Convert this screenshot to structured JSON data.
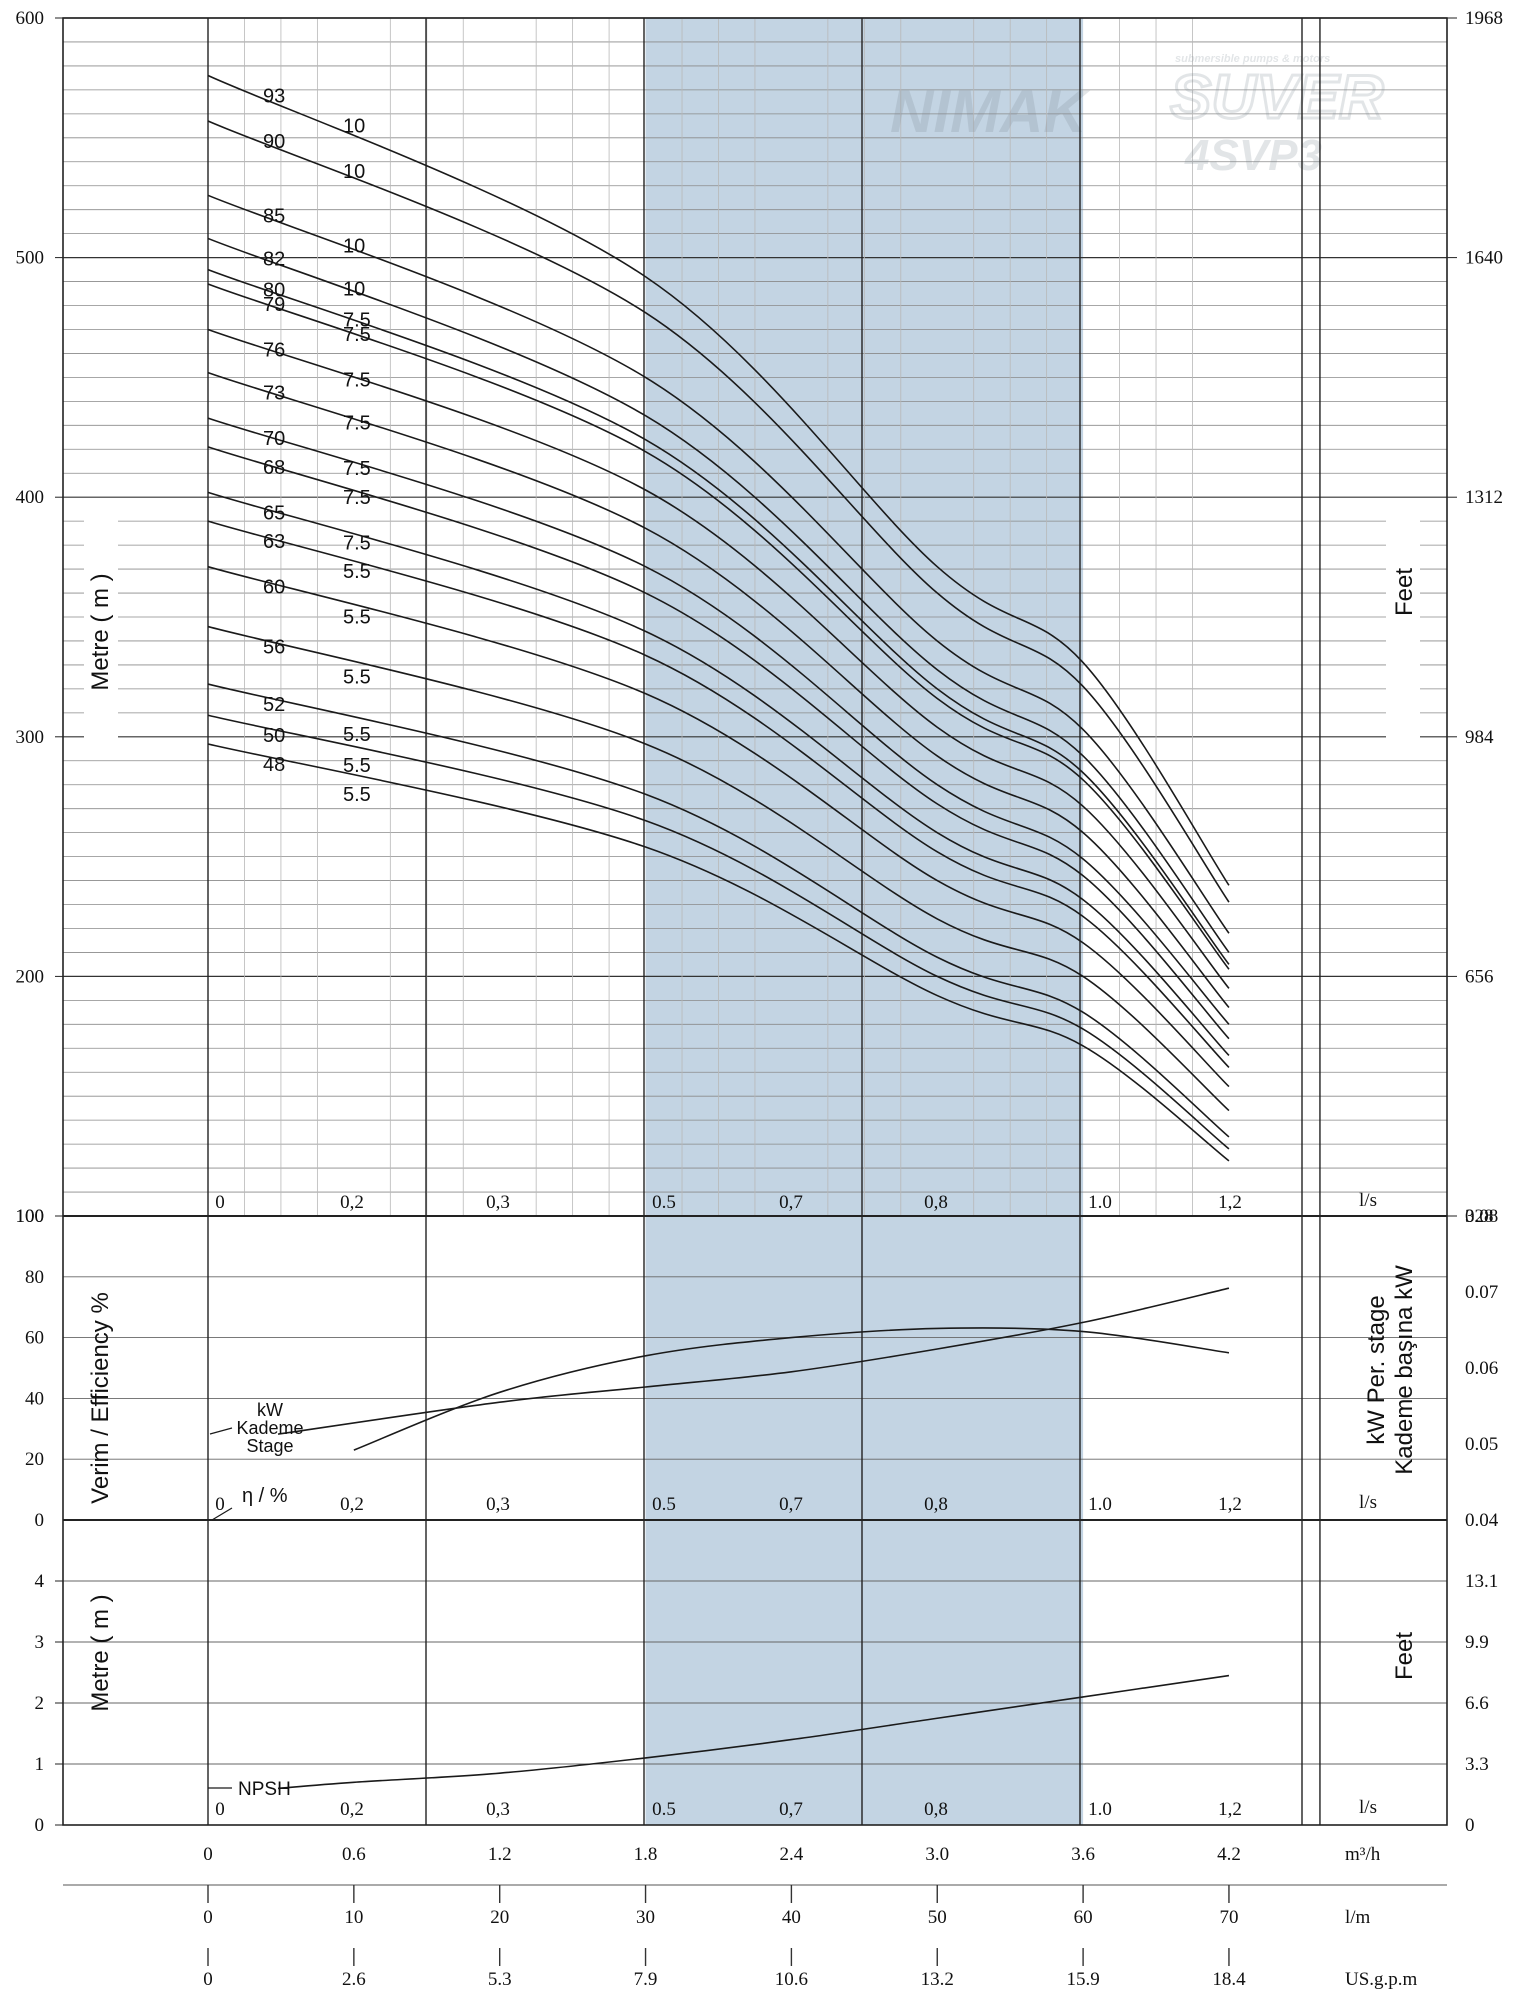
{
  "chart_data": [
    {
      "panel": "head",
      "type": "line",
      "ylabel_left": "Metre ( m )",
      "ylabel_right": "Feet",
      "y_ticks_left": [
        "600",
        "500",
        "400",
        "300",
        "200",
        "100"
      ],
      "y_ticks_right": [
        "1968",
        "1640",
        "1312",
        "984",
        "656",
        "328"
      ],
      "ylim": [
        100,
        600
      ],
      "x_ticks": [
        "0",
        "0,2",
        "0,3",
        "0.5",
        "0,7",
        "0,8",
        "1.0",
        "1,2"
      ],
      "x_unit": "l/s",
      "series": [
        {
          "stage": "93",
          "kw": "10",
          "q": [
            0,
            30,
            50,
            60,
            70
          ],
          "h": [
            576,
            492,
            371,
            331,
            238
          ]
        },
        {
          "stage": "90",
          "kw": "10",
          "q": [
            0,
            30,
            50,
            60,
            70
          ],
          "h": [
            557,
            477,
            360,
            321,
            231
          ]
        },
        {
          "stage": "85",
          "kw": "10",
          "q": [
            0,
            30,
            50,
            60,
            70
          ],
          "h": [
            526,
            450,
            340,
            303,
            218
          ]
        },
        {
          "stage": "82",
          "kw": "10",
          "q": [
            0,
            30,
            50,
            60,
            70
          ],
          "h": [
            508,
            434,
            328,
            292,
            210
          ]
        },
        {
          "stage": "80",
          "kw": "7.5",
          "q": [
            0,
            30,
            50,
            60,
            70
          ],
          "h": [
            495,
            424,
            320,
            285,
            205
          ]
        },
        {
          "stage": "79",
          "kw": "7.5",
          "q": [
            0,
            30,
            50,
            60,
            70
          ],
          "h": [
            489,
            419,
            316,
            282,
            203
          ]
        },
        {
          "stage": "76",
          "kw": "7.5",
          "q": [
            0,
            30,
            50,
            60,
            70
          ],
          "h": [
            470,
            403,
            304,
            271,
            195
          ]
        },
        {
          "stage": "73",
          "kw": "7.5",
          "q": [
            0,
            30,
            50,
            60,
            70
          ],
          "h": [
            452,
            387,
            292,
            260,
            187
          ]
        },
        {
          "stage": "70",
          "kw": "7.5",
          "q": [
            0,
            30,
            50,
            60,
            70
          ],
          "h": [
            433,
            371,
            280,
            249,
            180
          ]
        },
        {
          "stage": "68",
          "kw": "7.5",
          "q": [
            0,
            30,
            50,
            60,
            70
          ],
          "h": [
            421,
            360,
            272,
            242,
            174
          ]
        },
        {
          "stage": "65",
          "kw": "7.5",
          "q": [
            0,
            30,
            50,
            60,
            70
          ],
          "h": [
            402,
            344,
            260,
            232,
            167
          ]
        },
        {
          "stage": "63",
          "kw": "5.5",
          "q": [
            0,
            30,
            50,
            60,
            70
          ],
          "h": [
            390,
            334,
            252,
            225,
            162
          ]
        },
        {
          "stage": "60",
          "kw": "5.5",
          "q": [
            0,
            30,
            50,
            60,
            70
          ],
          "h": [
            371,
            318,
            240,
            214,
            154
          ]
        },
        {
          "stage": "56",
          "kw": "5.5",
          "q": [
            0,
            30,
            50,
            60,
            70
          ],
          "h": [
            346,
            297,
            224,
            200,
            144
          ]
        },
        {
          "stage": "52",
          "kw": "5.5",
          "q": [
            0,
            30,
            50,
            60,
            70
          ],
          "h": [
            322,
            276,
            208,
            185,
            133
          ]
        },
        {
          "stage": "50",
          "kw": "5.5",
          "q": [
            0,
            30,
            50,
            60,
            70
          ],
          "h": [
            309,
            265,
            200,
            178,
            128
          ]
        },
        {
          "stage": "48",
          "kw": "5.5",
          "q": [
            0,
            30,
            50,
            60,
            70
          ],
          "h": [
            297,
            254,
            192,
            171,
            123
          ]
        }
      ]
    },
    {
      "panel": "efficiency_power",
      "type": "line",
      "ylabel_left": "Verim / Efficiency %",
      "ylabel_right": "kW Per. stage Kademe başına kW",
      "y_ticks_left": [
        "100",
        "80",
        "60",
        "40",
        "20",
        "0"
      ],
      "y_ticks_right": [
        "0.08",
        "0.07",
        "0.06",
        "0.05",
        "0.04"
      ],
      "x_ticks": [
        "0",
        "0,2",
        "0,3",
        "0.5",
        "0,7",
        "0,8",
        "1.0",
        "1,2"
      ],
      "x_unit": "l/s",
      "kw_label": [
        "kW",
        "Kademe",
        "Stage"
      ],
      "eff_label": "η / %",
      "efficiency": {
        "q": [
          0,
          10,
          20,
          30,
          40,
          50,
          60,
          70
        ],
        "v": [
          0,
          23,
          42,
          54,
          60,
          63,
          62,
          55
        ]
      },
      "kw_per_stage": {
        "q": [
          0,
          20,
          30,
          40,
          50,
          60,
          70
        ],
        "v": [
          0.0513,
          0.0555,
          0.0575,
          0.0595,
          0.0625,
          0.066,
          0.0705
        ]
      }
    },
    {
      "panel": "npsh",
      "type": "line",
      "ylabel_left": "Metre ( m )",
      "ylabel_right": "Feet",
      "y_ticks_left": [
        "4",
        "3",
        "2",
        "1",
        "0"
      ],
      "y_ticks_right": [
        "13.1",
        "9.9",
        "6.6",
        "3.3",
        "0"
      ],
      "x_ticks": [
        "0",
        "0,2",
        "0,3",
        "0.5",
        "0,7",
        "0,8",
        "1.0",
        "1,2"
      ],
      "x_unit": "l/s",
      "npsh_label": "NPSH",
      "npsh": {
        "q": [
          0,
          10,
          20,
          30,
          40,
          50,
          60,
          70
        ],
        "v": [
          0.6,
          0.7,
          0.85,
          1.1,
          1.4,
          1.75,
          2.1,
          2.45
        ]
      }
    }
  ],
  "flow_axes": [
    {
      "unit": "m³/h",
      "ticks": [
        "0",
        "0.6",
        "1.2",
        "1.8",
        "2.4",
        "3.0",
        "3.6",
        "4.2"
      ]
    },
    {
      "unit": "l/m",
      "ticks": [
        "0",
        "10",
        "20",
        "30",
        "40",
        "50",
        "60",
        "70"
      ]
    },
    {
      "unit": "US.g.p.m",
      "ticks": [
        "0",
        "2.6",
        "5.3",
        "7.9",
        "10.6",
        "13.2",
        "15.9",
        "18.4"
      ]
    }
  ],
  "watermark": {
    "brand1": "NIMAK",
    "brand2": "SUVER",
    "tagline": "submersible pumps & motors",
    "model": "4SVP3"
  },
  "colors": {
    "band": "#c3d4e3",
    "line": "#1a1a1a",
    "grid": "#8a8a8a",
    "frame": "#222222"
  }
}
